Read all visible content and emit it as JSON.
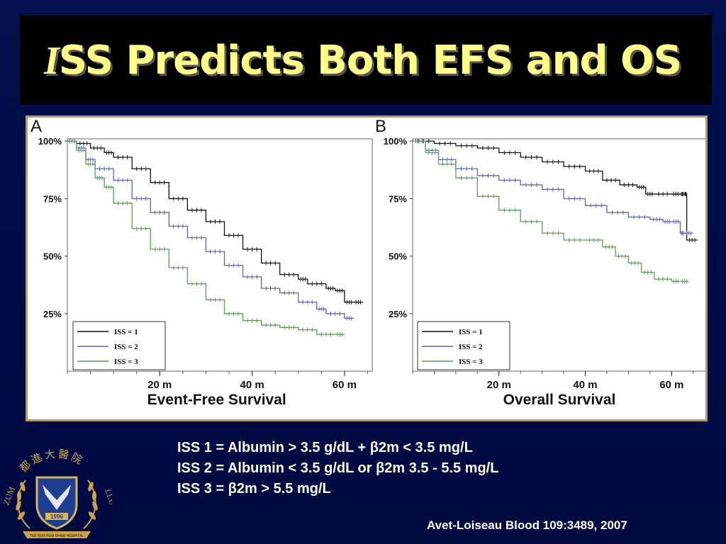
{
  "slide": {
    "title_first_letter": "I",
    "title_rest": "SS Predicts Both EFS and OS"
  },
  "chart_data": [
    {
      "type": "line",
      "panel_letter": "A",
      "title": "Event-Free Survival",
      "y_ticks": [
        "100%",
        "75%",
        "50%",
        "25%"
      ],
      "y_tick_values": [
        100,
        75,
        50,
        25
      ],
      "x_ticks": [
        "20 m",
        "40 m",
        "60 m"
      ],
      "x_tick_values": [
        20,
        40,
        60
      ],
      "xlim": [
        0,
        66
      ],
      "ylim": [
        0,
        101
      ],
      "legend_position": "bottom-left",
      "series": [
        {
          "name": "ISS = 1",
          "color": "#111111",
          "x": [
            0,
            2,
            5,
            8,
            10,
            14,
            18,
            22,
            26,
            30,
            34,
            38,
            42,
            46,
            50,
            52,
            56,
            58,
            60,
            62,
            64
          ],
          "y": [
            100,
            99,
            97,
            95,
            93,
            88,
            82,
            75,
            70,
            65,
            59,
            53,
            47,
            42,
            40,
            38,
            36,
            35,
            30,
            30,
            30
          ]
        },
        {
          "name": "ISS = 2",
          "color": "#5a66b8",
          "x": [
            0,
            2,
            4,
            6,
            10,
            14,
            18,
            22,
            26,
            30,
            34,
            38,
            42,
            46,
            50,
            54,
            56,
            60,
            62
          ],
          "y": [
            100,
            97,
            92,
            88,
            83,
            75,
            69,
            63,
            58,
            52,
            46,
            41,
            36,
            34,
            30,
            27,
            25,
            23,
            23
          ]
        },
        {
          "name": "ISS = 3",
          "color": "#5e9a58",
          "x": [
            0,
            2,
            4,
            6,
            8,
            10,
            14,
            18,
            22,
            26,
            30,
            34,
            38,
            42,
            46,
            50,
            54,
            58,
            60
          ],
          "y": [
            100,
            96,
            90,
            84,
            80,
            73,
            62,
            53,
            45,
            38,
            31,
            25,
            22,
            20,
            19,
            18,
            16,
            16,
            16
          ]
        }
      ]
    },
    {
      "type": "line",
      "panel_letter": "B",
      "title": "Overall Survival",
      "y_ticks": [
        "100%",
        "75%",
        "50%",
        "25%"
      ],
      "y_tick_values": [
        100,
        75,
        50,
        25
      ],
      "x_ticks": [
        "20 m",
        "40 m",
        "60 m"
      ],
      "x_tick_values": [
        20,
        40,
        60
      ],
      "xlim": [
        0,
        68
      ],
      "ylim": [
        0,
        101
      ],
      "legend_position": "bottom-left",
      "series": [
        {
          "name": "ISS = 1",
          "color": "#111111",
          "x": [
            0,
            5,
            10,
            15,
            20,
            25,
            30,
            35,
            40,
            44,
            48,
            52,
            54,
            56,
            60,
            62,
            63,
            63.5,
            66
          ],
          "y": [
            100,
            99,
            98,
            97,
            95,
            93,
            91,
            89,
            87,
            83,
            81,
            80,
            77,
            77,
            77,
            77,
            77,
            57,
            57
          ]
        },
        {
          "name": "ISS = 2",
          "color": "#5a66b8",
          "x": [
            0,
            3,
            6,
            10,
            15,
            20,
            25,
            30,
            35,
            40,
            45,
            50,
            55,
            58,
            60,
            62,
            63,
            65
          ],
          "y": [
            100,
            96,
            92,
            88,
            85,
            83,
            81,
            79,
            75,
            72,
            69,
            67,
            66,
            65,
            65,
            60,
            60,
            60
          ]
        },
        {
          "name": "ISS = 3",
          "color": "#5e9a58",
          "x": [
            0,
            3,
            6,
            10,
            15,
            20,
            25,
            30,
            35,
            40,
            44,
            47,
            50,
            53,
            56,
            60,
            62,
            64
          ],
          "y": [
            100,
            95,
            90,
            84,
            76,
            70,
            65,
            60,
            57,
            57,
            54,
            50,
            47,
            43,
            40,
            39,
            39,
            39
          ]
        }
      ]
    }
  ],
  "caption": {
    "line1": "ISS 1 = Albumin > 3.5 g/dL + β2m < 3.5 mg/L",
    "line2": "ISS 2 = Albumin < 3.5 g/dL or β2m  3.5 - 5.5 mg/L",
    "line3": "ISS 3 = β2m > 5.5 mg/L"
  },
  "citation": "Avet-Loiseau Blood 109:3489, 2007",
  "logo": {
    "chinese_text": "都進大醫院",
    "left_letters": "ZUM",
    "right_letters": "LLU",
    "year": "1996",
    "ribbon_text": "TEE RUN RUN SHAW HOSPITAL"
  }
}
